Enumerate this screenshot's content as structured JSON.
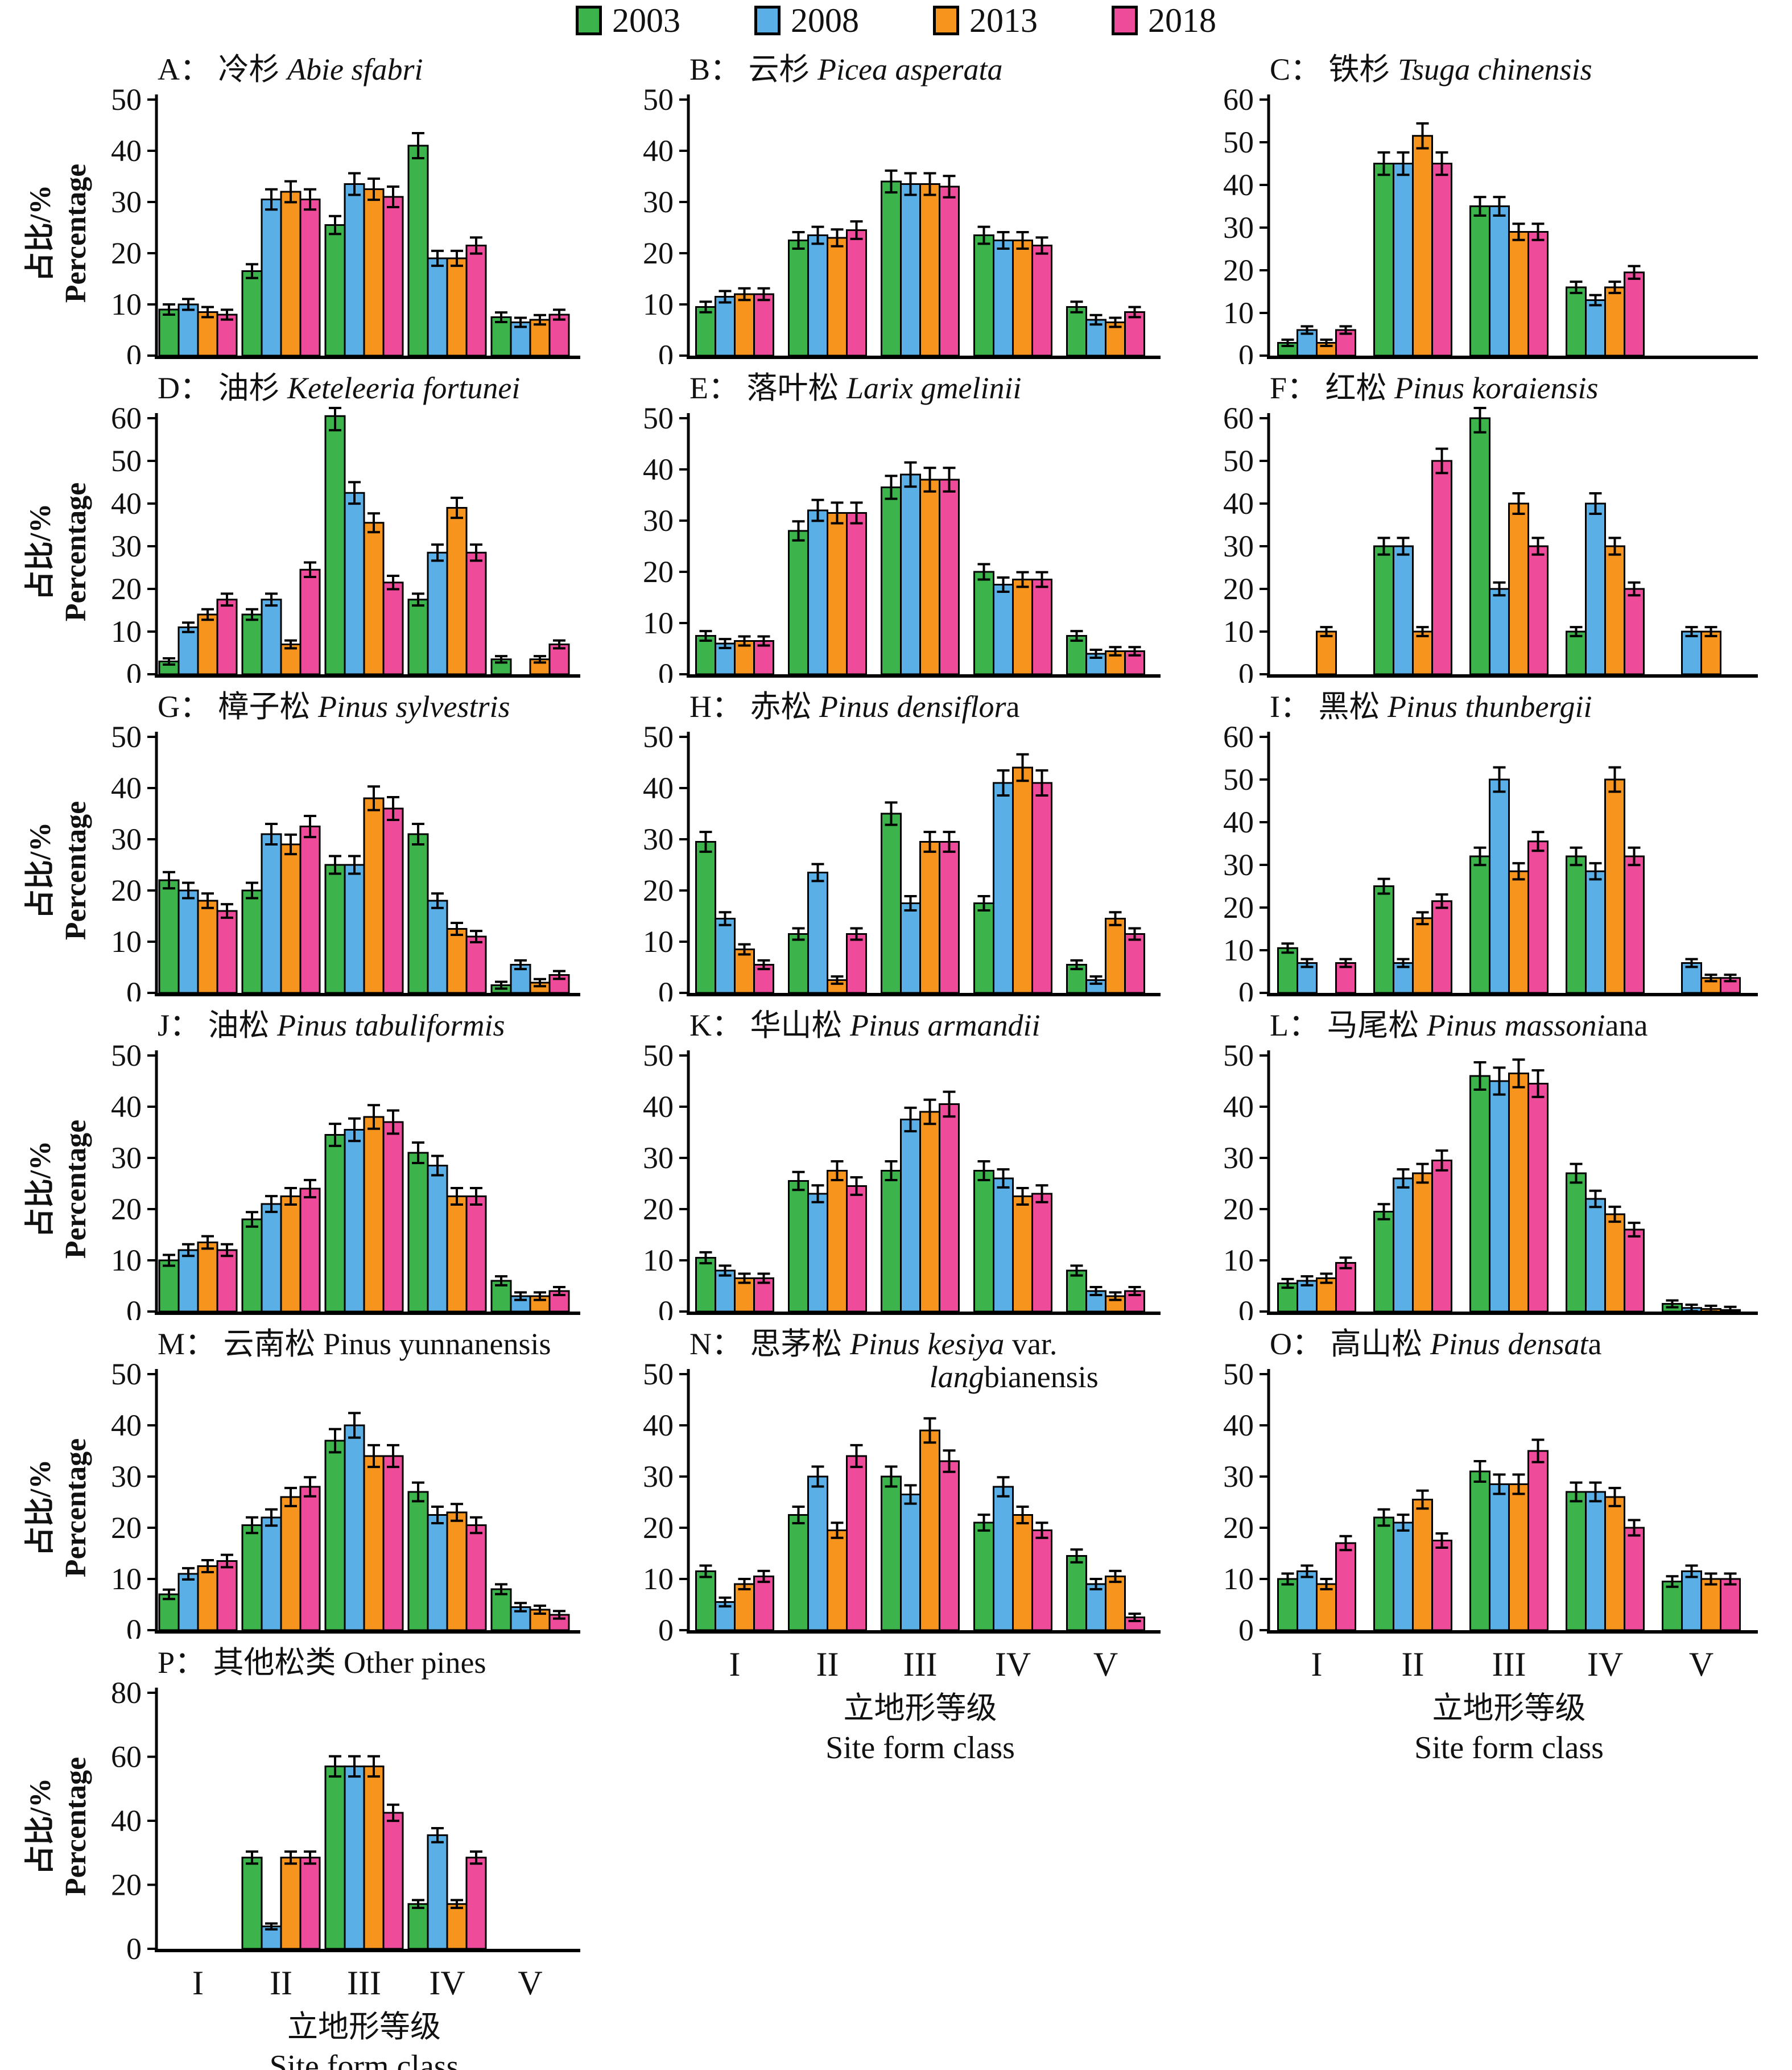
{
  "legend": {
    "items": [
      {
        "label": "2003",
        "color": "#3cb44b"
      },
      {
        "label": "2008",
        "color": "#5aafe6"
      },
      {
        "label": "2013",
        "color": "#f7941e"
      },
      {
        "label": "2018",
        "color": "#ee4c9b"
      }
    ]
  },
  "axes": {
    "x_label_cn": "立地形等级",
    "x_label_en": "Site form class",
    "y_label_cn": "占比/%",
    "y_label_en": "Percentage"
  },
  "chart_data": {
    "type": "bar",
    "categories": [
      "I",
      "II",
      "III",
      "IV",
      "V"
    ],
    "series_names": [
      "2003",
      "2008",
      "2013",
      "2018"
    ],
    "legend_position": "top",
    "error_bars": true,
    "grid": false,
    "panels": [
      {
        "letter": "A",
        "name_cn": "冷杉",
        "latin_italic": "Abie sfabri",
        "latin_roman": "",
        "ylim": [
          0,
          50
        ],
        "ystep": 10,
        "series": [
          [
            9,
            16.5,
            25.5,
            41,
            7.5
          ],
          [
            10,
            30.5,
            33.5,
            19,
            6.5
          ],
          [
            8.5,
            32,
            32.5,
            19,
            7
          ],
          [
            8,
            30.5,
            31,
            21.5,
            8
          ]
        ]
      },
      {
        "letter": "B",
        "name_cn": "云杉",
        "latin_italic": "Picea asperata",
        "latin_roman": "",
        "ylim": [
          0,
          50
        ],
        "ystep": 10,
        "series": [
          [
            9.5,
            22.5,
            34,
            23.5,
            9.5
          ],
          [
            11.5,
            23.5,
            33.5,
            22.5,
            7
          ],
          [
            12,
            23,
            33.5,
            22.5,
            6.5
          ],
          [
            12,
            24.5,
            33,
            21.5,
            8.5
          ]
        ]
      },
      {
        "letter": "C",
        "name_cn": "铁杉",
        "latin_italic": "Tsuga chinensis",
        "latin_roman": "",
        "ylim": [
          0,
          60
        ],
        "ystep": 10,
        "series": [
          [
            3,
            45,
            35,
            16,
            0
          ],
          [
            6,
            45,
            35,
            13,
            0
          ],
          [
            3,
            51.5,
            29,
            16,
            0
          ],
          [
            6,
            45,
            29,
            19.5,
            0
          ]
        ]
      },
      {
        "letter": "D",
        "name_cn": "油杉",
        "latin_italic": "Keteleeria fortunei",
        "latin_roman": "",
        "ylim": [
          0,
          60
        ],
        "ystep": 10,
        "series": [
          [
            3,
            14,
            60.5,
            17.5,
            3.5
          ],
          [
            11,
            17.5,
            42.5,
            28.5,
            0
          ],
          [
            14,
            7,
            35.5,
            39,
            3.5
          ],
          [
            17.5,
            24.5,
            21.5,
            28.5,
            7
          ]
        ]
      },
      {
        "letter": "E",
        "name_cn": "落叶松",
        "latin_italic": "Larix gmelinii",
        "latin_roman": "",
        "ylim": [
          0,
          50
        ],
        "ystep": 10,
        "series": [
          [
            7.5,
            28,
            36.5,
            20,
            7.5
          ],
          [
            6,
            32,
            39,
            17.5,
            4
          ],
          [
            6.5,
            31.5,
            38,
            18.5,
            4.5
          ],
          [
            6.5,
            31.5,
            38,
            18.5,
            4.5
          ]
        ]
      },
      {
        "letter": "F",
        "name_cn": "红松",
        "latin_italic": "Pinus koraiensis",
        "latin_roman": "",
        "ylim": [
          0,
          60
        ],
        "ystep": 10,
        "series": [
          [
            0,
            30,
            60,
            10,
            0
          ],
          [
            0,
            30,
            20,
            40,
            10
          ],
          [
            10,
            10,
            40,
            30,
            10
          ],
          [
            0,
            50,
            30,
            20,
            0
          ]
        ]
      },
      {
        "letter": "G",
        "name_cn": "樟子松",
        "latin_italic": "Pinus sylvestris",
        "latin_roman": "",
        "ylim": [
          0,
          50
        ],
        "ystep": 10,
        "series": [
          [
            22,
            20,
            25,
            31,
            1.5
          ],
          [
            20,
            31,
            25,
            18,
            5.5
          ],
          [
            18,
            29,
            38,
            12.5,
            2
          ],
          [
            16,
            32.5,
            36,
            11,
            3.5
          ]
        ]
      },
      {
        "letter": "H",
        "name_cn": "赤松",
        "latin_italic": "Pinus densiflor",
        "latin_roman": "a",
        "ylim": [
          0,
          50
        ],
        "ystep": 10,
        "series": [
          [
            29.5,
            11.5,
            35,
            17.5,
            5.5
          ],
          [
            14.5,
            23.5,
            17.5,
            41,
            2.5
          ],
          [
            8.5,
            2.5,
            29.5,
            44,
            14.5
          ],
          [
            5.5,
            11.5,
            29.5,
            41,
            11.5
          ]
        ]
      },
      {
        "letter": "I",
        "name_cn": "黑松",
        "latin_italic": "Pinus thunbergii",
        "latin_roman": "",
        "ylim": [
          0,
          60
        ],
        "ystep": 10,
        "series": [
          [
            10.5,
            25,
            32,
            32,
            0
          ],
          [
            7,
            7,
            50,
            28.5,
            7
          ],
          [
            0,
            17.5,
            28.5,
            50,
            3.5
          ],
          [
            7,
            21.5,
            35.5,
            32,
            3.5
          ]
        ]
      },
      {
        "letter": "J",
        "name_cn": "油松",
        "latin_italic": "Pinus tabuliformis",
        "latin_roman": "",
        "ylim": [
          0,
          50
        ],
        "ystep": 10,
        "series": [
          [
            10,
            18,
            34.5,
            31,
            6
          ],
          [
            12,
            21,
            35.5,
            28.5,
            3
          ],
          [
            13.5,
            22.5,
            38,
            22.5,
            3
          ],
          [
            12,
            24,
            37,
            22.5,
            4
          ]
        ]
      },
      {
        "letter": "K",
        "name_cn": "华山松",
        "latin_italic": "Pinus armandii",
        "latin_roman": "",
        "ylim": [
          0,
          50
        ],
        "ystep": 10,
        "series": [
          [
            10.5,
            25.5,
            27.5,
            27.5,
            8
          ],
          [
            8,
            23,
            37.5,
            26,
            4
          ],
          [
            6.5,
            27.5,
            39,
            22.5,
            3
          ],
          [
            6.5,
            24.5,
            40.5,
            23,
            4
          ]
        ]
      },
      {
        "letter": "L",
        "name_cn": "马尾松",
        "latin_italic": "Pinus massoni",
        "latin_roman": "ana",
        "ylim": [
          0,
          50
        ],
        "ystep": 10,
        "series": [
          [
            5.5,
            19.5,
            46,
            27,
            1.5
          ],
          [
            6,
            26,
            45,
            22,
            0.7
          ],
          [
            6.5,
            27,
            46.5,
            19,
            0.5
          ],
          [
            9.5,
            29.5,
            44.5,
            16,
            0.3
          ]
        ]
      },
      {
        "letter": "M",
        "name_cn": "云南松",
        "latin_italic": "",
        "latin_roman": "Pinus yunnanensis",
        "ylim": [
          0,
          50
        ],
        "ystep": 10,
        "series": [
          [
            7,
            20.5,
            37,
            27,
            8
          ],
          [
            11,
            22,
            40,
            22.5,
            4.5
          ],
          [
            12.5,
            26,
            34,
            23,
            4
          ],
          [
            13.5,
            28,
            34,
            20.5,
            3
          ]
        ]
      },
      {
        "letter": "N",
        "name_cn": "思茅松",
        "latin_italic": "Pinus kesiya",
        "latin_roman": " var.",
        "latin2_italic": "lang",
        "latin2_roman": "bianensis",
        "ylim": [
          0,
          50
        ],
        "ystep": 10,
        "series": [
          [
            11.5,
            22.5,
            30,
            21,
            14.5
          ],
          [
            5.5,
            30,
            26.5,
            28,
            9
          ],
          [
            9,
            19.5,
            39,
            22.5,
            10.5
          ],
          [
            10.5,
            34,
            33,
            19.5,
            2.5
          ]
        ]
      },
      {
        "letter": "O",
        "name_cn": "高山松",
        "latin_italic": "Pinus densat",
        "latin_roman": "a",
        "ylim": [
          0,
          50
        ],
        "ystep": 10,
        "series": [
          [
            10,
            22,
            31,
            27,
            9.5
          ],
          [
            11.5,
            21,
            28.5,
            27,
            11.5
          ],
          [
            9,
            25.5,
            28.5,
            26,
            10
          ],
          [
            17,
            17.5,
            35,
            20,
            10
          ]
        ]
      },
      {
        "letter": "P",
        "name_cn": "其他松类",
        "latin_italic": "",
        "latin_roman": "Other pines",
        "ylim": [
          0,
          80
        ],
        "ystep": 20,
        "series": [
          [
            0,
            28.5,
            57,
            14,
            0
          ],
          [
            0,
            7,
            57,
            35.5,
            0
          ],
          [
            0,
            28.5,
            57,
            14,
            0
          ],
          [
            0,
            28.5,
            42.5,
            28.5,
            0
          ]
        ]
      }
    ]
  }
}
